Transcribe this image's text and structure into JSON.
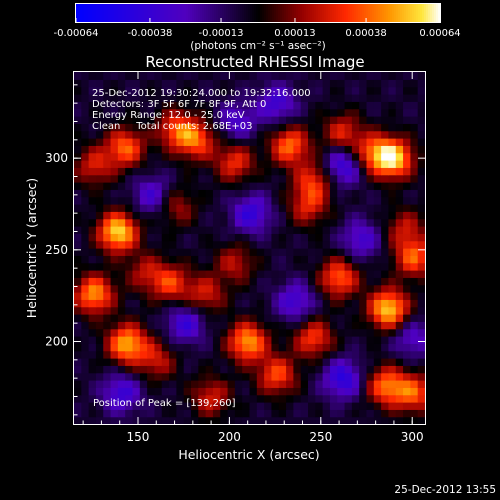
{
  "colorbar": {
    "ticks": [
      {
        "value": -0.00064,
        "label": "-0.00064"
      },
      {
        "value": -0.00038,
        "label": "-0.00038"
      },
      {
        "value": -0.00013,
        "label": "-0.00013"
      },
      {
        "value": 0.00013,
        "label": "0.00013"
      },
      {
        "value": 0.00038,
        "label": "0.00038"
      },
      {
        "value": 0.00064,
        "label": "0.00064"
      }
    ],
    "unit_label": "(photons cm⁻² s⁻¹ asec⁻²)"
  },
  "chart_data": {
    "type": "heatmap",
    "title": "Reconstructed RHESSI Image",
    "xlabel": "Heliocentric X (arcsec)",
    "ylabel": "Heliocentric Y (arcsec)",
    "xlim": [
      115,
      307
    ],
    "ylim": [
      155,
      347
    ],
    "value_range": [
      -0.00064,
      0.00064
    ],
    "colormap": "RHESSI red-temperature with blue negatives",
    "x_ticks": [
      {
        "value": 150,
        "label": "150"
      },
      {
        "value": 200,
        "label": "200"
      },
      {
        "value": 250,
        "label": "250"
      },
      {
        "value": 300,
        "label": "300"
      }
    ],
    "y_ticks": [
      {
        "value": 200,
        "label": "200"
      },
      {
        "value": 250,
        "label": "250"
      },
      {
        "value": 300,
        "label": "300"
      }
    ],
    "annotations": [
      "25-Dec-2012 19:30:24.000 to 19:32:16.000",
      "Detectors: 3F 5F 6F 7F 8F 9F, Att 0",
      "Energy Range: 12.0 - 25.0 keV",
      "Clean     Total counts: 2.68E+03"
    ],
    "peak_text": "Position of Peak = [139,260]",
    "peak_position": [
      139,
      260
    ],
    "blobs": [
      {
        "x": 139,
        "y": 260,
        "amp": 0.00064
      },
      {
        "x": 143,
        "y": 306,
        "amp": 0.00044
      },
      {
        "x": 126,
        "y": 296,
        "amp": 0.0003
      },
      {
        "x": 171,
        "y": 316,
        "amp": 0.00038
      },
      {
        "x": 182,
        "y": 310,
        "amp": 0.0004
      },
      {
        "x": 233,
        "y": 307,
        "amp": 0.00046
      },
      {
        "x": 262,
        "y": 314,
        "amp": 0.00032
      },
      {
        "x": 290,
        "y": 300,
        "amp": 0.0006
      },
      {
        "x": 279,
        "y": 303,
        "amp": 0.0004
      },
      {
        "x": 203,
        "y": 298,
        "amp": 0.00035
      },
      {
        "x": 246,
        "y": 288,
        "amp": 0.00034
      },
      {
        "x": 243,
        "y": 274,
        "amp": 0.0003
      },
      {
        "x": 126,
        "y": 226,
        "amp": 0.00052
      },
      {
        "x": 154,
        "y": 238,
        "amp": 0.00024
      },
      {
        "x": 168,
        "y": 232,
        "amp": 0.00036
      },
      {
        "x": 187,
        "y": 226,
        "amp": 0.0003
      },
      {
        "x": 203,
        "y": 243,
        "amp": 0.00026
      },
      {
        "x": 260,
        "y": 235,
        "amp": 0.00044
      },
      {
        "x": 287,
        "y": 218,
        "amp": 0.00062
      },
      {
        "x": 301,
        "y": 246,
        "amp": 0.00042
      },
      {
        "x": 144,
        "y": 199,
        "amp": 0.00056
      },
      {
        "x": 160,
        "y": 190,
        "amp": 0.00028
      },
      {
        "x": 210,
        "y": 200,
        "amp": 0.00054
      },
      {
        "x": 226,
        "y": 182,
        "amp": 0.0004
      },
      {
        "x": 246,
        "y": 202,
        "amp": 0.00038
      },
      {
        "x": 190,
        "y": 170,
        "amp": 0.0003
      },
      {
        "x": 286,
        "y": 176,
        "amp": 0.00046
      },
      {
        "x": 301,
        "y": 172,
        "amp": 0.0004
      },
      {
        "x": 171,
        "y": 274,
        "amp": 0.00024
      },
      {
        "x": 296,
        "y": 262,
        "amp": 0.00026
      },
      {
        "x": 158,
        "y": 280,
        "amp": -0.00028
      },
      {
        "x": 212,
        "y": 270,
        "amp": -0.00034
      },
      {
        "x": 262,
        "y": 296,
        "amp": -0.00036
      },
      {
        "x": 236,
        "y": 222,
        "amp": -0.0003
      },
      {
        "x": 176,
        "y": 210,
        "amp": -0.00032
      },
      {
        "x": 272,
        "y": 256,
        "amp": -0.00028
      },
      {
        "x": 262,
        "y": 180,
        "amp": -0.00038
      },
      {
        "x": 141,
        "y": 172,
        "amp": -0.00032
      },
      {
        "x": 226,
        "y": 330,
        "amp": -0.0003
      },
      {
        "x": 204,
        "y": 320,
        "amp": -0.00026
      },
      {
        "x": 300,
        "y": 202,
        "amp": -0.00024
      }
    ]
  },
  "footer": {
    "timestamp": "25-Dec-2012 13:55"
  }
}
